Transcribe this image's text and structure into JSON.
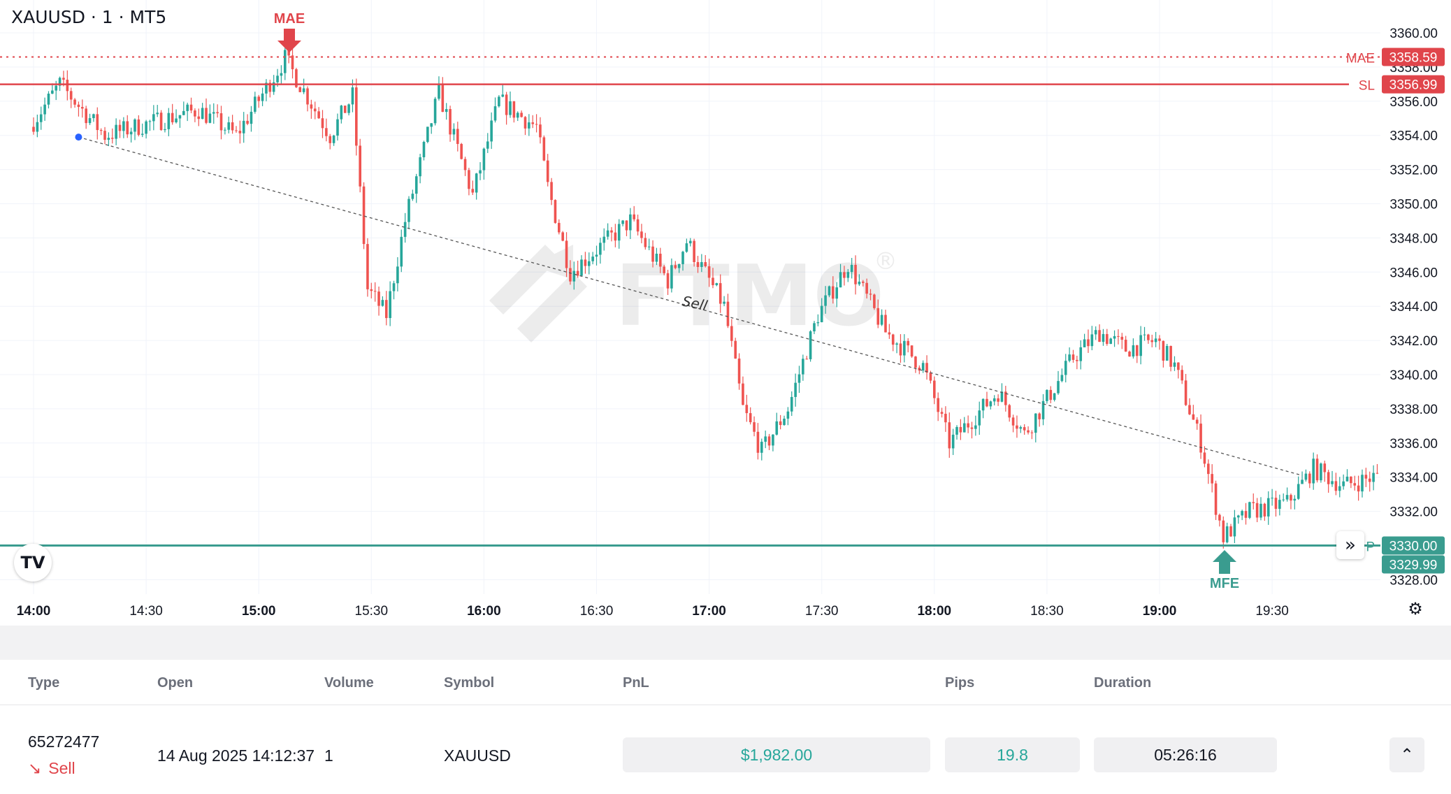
{
  "chart": {
    "title": "XAUUSD · 1 · MT5",
    "watermark": "FTMO",
    "watermark_mark": "®",
    "trade_line_label": "Sell",
    "y_ticks": [
      "3360.00",
      "3358.00",
      "3356.00",
      "3354.00",
      "3352.00",
      "3350.00",
      "3348.00",
      "3346.00",
      "3344.00",
      "3342.00",
      "3340.00",
      "3338.00",
      "3336.00",
      "3334.00",
      "3332.00",
      "3330.00",
      "3328.00"
    ],
    "x_ticks": [
      {
        "label": "14:00",
        "bold": true
      },
      {
        "label": "14:30",
        "bold": false
      },
      {
        "label": "15:00",
        "bold": true
      },
      {
        "label": "15:30",
        "bold": false
      },
      {
        "label": "16:00",
        "bold": true
      },
      {
        "label": "16:30",
        "bold": false
      },
      {
        "label": "17:00",
        "bold": true
      },
      {
        "label": "17:30",
        "bold": false
      },
      {
        "label": "18:00",
        "bold": true
      },
      {
        "label": "18:30",
        "bold": false
      },
      {
        "label": "19:00",
        "bold": true
      },
      {
        "label": "19:30",
        "bold": false
      }
    ],
    "levels": {
      "mae": {
        "label": "MAE",
        "price_label": "3358.59",
        "price": 3358.59
      },
      "sl": {
        "label": "SL",
        "price_label": "3356.99",
        "price": 3356.99
      },
      "tp": {
        "label": "P",
        "price_label": "3330.00",
        "price": 3330.0
      },
      "tp_secondary_label": "3329.99"
    },
    "markers": {
      "mae": "MAE",
      "mfe": "MFE"
    },
    "colors": {
      "up": "#26a69a",
      "down": "#ef5350",
      "sl": "#e0454b",
      "tp": "#3a9c8f",
      "entry": "#2962ff",
      "grid": "#f0f3fa"
    },
    "icons": {
      "logo": "tradingview-logo-icon",
      "expand": "double-chevron-right-icon",
      "settings": "gear-icon"
    }
  },
  "chart_data": {
    "type": "candlestick",
    "xlabel": "",
    "ylabel": "",
    "x_range": [
      "14:00",
      "19:58"
    ],
    "ylim": [
      3327.5,
      3361
    ],
    "trade": {
      "side": "Sell",
      "entry_time": "14:12",
      "entry_price": 3353.9,
      "exit_time": "19:38",
      "exit_price": 3334.1
    },
    "key_points": [
      {
        "time": "14:00",
        "price": 3354.5
      },
      {
        "time": "14:08",
        "price": 3357.0
      },
      {
        "time": "14:20",
        "price": 3354.0
      },
      {
        "time": "14:45",
        "price": 3355.5
      },
      {
        "time": "14:55",
        "price": 3354.0
      },
      {
        "time": "15:08",
        "price": 3358.5
      },
      {
        "time": "15:20",
        "price": 3354.0
      },
      {
        "time": "15:26",
        "price": 3356.3
      },
      {
        "time": "15:30",
        "price": 3345.0
      },
      {
        "time": "15:35",
        "price": 3343.5
      },
      {
        "time": "15:40",
        "price": 3349.0
      },
      {
        "time": "15:49",
        "price": 3356.5
      },
      {
        "time": "15:58",
        "price": 3350.5
      },
      {
        "time": "16:05",
        "price": 3356.0
      },
      {
        "time": "16:15",
        "price": 3354.5
      },
      {
        "time": "16:18",
        "price": 3351.0
      },
      {
        "time": "16:24",
        "price": 3346.0
      },
      {
        "time": "16:40",
        "price": 3349.0
      },
      {
        "time": "16:50",
        "price": 3345.5
      },
      {
        "time": "16:55",
        "price": 3347.8
      },
      {
        "time": "17:05",
        "price": 3344.0
      },
      {
        "time": "17:10",
        "price": 3338.0
      },
      {
        "time": "17:15",
        "price": 3335.5
      },
      {
        "time": "17:22",
        "price": 3338.0
      },
      {
        "time": "17:30",
        "price": 3343.5
      },
      {
        "time": "17:38",
        "price": 3346.5
      },
      {
        "time": "17:48",
        "price": 3342.5
      },
      {
        "time": "17:58",
        "price": 3340.5
      },
      {
        "time": "18:05",
        "price": 3336.0
      },
      {
        "time": "18:18",
        "price": 3339.0
      },
      {
        "time": "18:25",
        "price": 3336.5
      },
      {
        "time": "18:38",
        "price": 3341.0
      },
      {
        "time": "18:45",
        "price": 3342.5
      },
      {
        "time": "18:52",
        "price": 3341.5
      },
      {
        "time": "19:00",
        "price": 3342.0
      },
      {
        "time": "19:05",
        "price": 3340.5
      },
      {
        "time": "19:12",
        "price": 3336.0
      },
      {
        "time": "19:18",
        "price": 3330.5
      },
      {
        "time": "19:25",
        "price": 3332.0
      },
      {
        "time": "19:35",
        "price": 3332.5
      },
      {
        "time": "19:42",
        "price": 3334.5
      },
      {
        "time": "19:50",
        "price": 3333.5
      },
      {
        "time": "19:58",
        "price": 3334.0
      }
    ]
  },
  "table": {
    "headers": {
      "type": "Type",
      "open": "Open",
      "volume": "Volume",
      "symbol": "Symbol",
      "pnl": "PnL",
      "pips": "Pips",
      "duration": "Duration"
    },
    "row": {
      "id": "65272477",
      "side": "Sell",
      "open": "14 Aug 2025 14:12:37",
      "volume": "1",
      "symbol": "XAUUSD",
      "pnl": "$1,982.00",
      "pips": "19.8",
      "duration": "05:26:16"
    },
    "colors": {
      "pnl": "#26a69a",
      "sell": "#e0454b"
    },
    "icons": {
      "side": "arrow-down-right-icon",
      "collapse": "chevron-up-icon"
    }
  }
}
